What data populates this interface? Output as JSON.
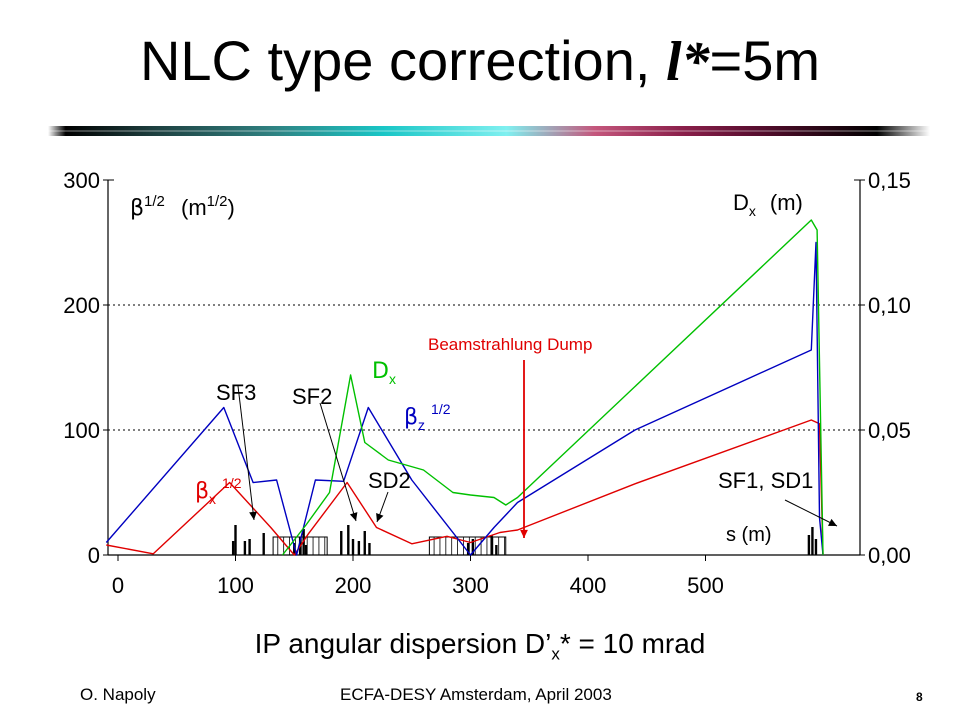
{
  "slide": {
    "title_prefix": "NLC type correction, ",
    "title_symbol": "l*",
    "title_suffix": "=5m",
    "subtitle_main": "IP angular dispersion D’",
    "subtitle_sub": "x",
    "subtitle_end": "* = 10 mrad",
    "footer_left": "O. Napoly",
    "footer_center": "ECFA-DESY Amsterdam, April 2003",
    "page_number": "8"
  },
  "colors": {
    "beta_x": "#e00000",
    "beta_z": "#0000c0",
    "dx": "#00c000",
    "dump": "#e00000",
    "grid": "#000000"
  },
  "chart_data": {
    "type": "line",
    "xlim": [
      -10,
      600
    ],
    "ylim_left": [
      0,
      300
    ],
    "ylim_right": [
      0,
      0.15
    ],
    "x_ticks": [
      0,
      100,
      200,
      300,
      400,
      500
    ],
    "x_tick_labels": [
      "0",
      "100",
      "200",
      "300",
      "400",
      "500"
    ],
    "y_ticks_left": [
      0,
      100,
      200,
      300
    ],
    "y_tick_labels_left": [
      "0",
      "100",
      "200",
      "300"
    ],
    "y_ticks_right": [
      0,
      0.05,
      0.1,
      0.15
    ],
    "y_tick_labels_right": [
      "0,00",
      "0,05",
      "0,10",
      "0,15"
    ],
    "grid": "dotted horizontal at 100 and 200",
    "left_axis_label": {
      "main": "β",
      "sup": "1/2",
      "units": "(m",
      "units_sup": "1/2",
      "close": ")"
    },
    "right_axis_label": {
      "main": "D",
      "sub": "x",
      "units": "(m)"
    },
    "x_axis_label": "s (m)",
    "series": [
      {
        "name": "βx 1/2",
        "axis": "left",
        "x": [
          -10,
          30,
          95,
          130,
          150,
          162,
          195,
          220,
          250,
          280,
          300,
          325,
          340,
          440,
          590,
          597,
          600
        ],
        "y": [
          8,
          1,
          58,
          22,
          0,
          17,
          58,
          22,
          9,
          15,
          10,
          18,
          20,
          57,
          108,
          105,
          0
        ]
      },
      {
        "name": "βz 1/2",
        "axis": "left",
        "x": [
          -10,
          90,
          115,
          135,
          152,
          168,
          192,
          213,
          250,
          300,
          320,
          340,
          440,
          590,
          594,
          597,
          600
        ],
        "y": [
          10,
          118,
          58,
          60,
          0,
          60,
          59,
          118,
          60,
          0,
          22,
          42,
          100,
          164,
          250,
          30,
          0
        ]
      },
      {
        "name": "Dx",
        "axis": "right",
        "x": [
          140,
          160,
          180,
          198,
          210,
          230,
          260,
          285,
          300,
          320,
          330,
          340,
          590,
          595,
          600
        ],
        "y": [
          0.0,
          0.012,
          0.025,
          0.072,
          0.045,
          0.038,
          0.034,
          0.025,
          0.024,
          0.023,
          0.02,
          0.023,
          0.134,
          0.13,
          0.0
        ]
      }
    ],
    "magnet_lattice": {
      "bends": [
        {
          "x1": 132,
          "x2": 178
        },
        {
          "x1": 265,
          "x2": 330
        }
      ],
      "marks": [
        {
          "x": 98,
          "h": 14
        },
        {
          "x": 100,
          "h": 30
        },
        {
          "x": 108,
          "h": 14
        },
        {
          "x": 112,
          "h": 16
        },
        {
          "x": 124,
          "h": 22
        },
        {
          "x": 150,
          "h": 12
        },
        {
          "x": 155,
          "h": 18
        },
        {
          "x": 158,
          "h": 26
        },
        {
          "x": 160,
          "h": 10
        },
        {
          "x": 190,
          "h": 24
        },
        {
          "x": 196,
          "h": 30
        },
        {
          "x": 200,
          "h": 16
        },
        {
          "x": 205,
          "h": 14
        },
        {
          "x": 210,
          "h": 24
        },
        {
          "x": 214,
          "h": 12
        },
        {
          "x": 298,
          "h": 12
        },
        {
          "x": 302,
          "h": 16
        },
        {
          "x": 318,
          "h": 20
        },
        {
          "x": 322,
          "h": 10
        },
        {
          "x": 588,
          "h": 20
        },
        {
          "x": 591,
          "h": 28
        },
        {
          "x": 594,
          "h": 16
        }
      ]
    },
    "annotations": [
      {
        "text": "SF3",
        "color": "#000000",
        "arrows": [
          [
            238,
            386,
            254,
            520
          ]
        ]
      },
      {
        "text": "SF2",
        "color": "#000000",
        "arrows": [
          [
            320,
            403,
            356,
            521
          ]
        ]
      },
      {
        "text": "SD2",
        "color": "#000000",
        "arrows": [
          [
            388,
            492,
            377,
            522
          ]
        ]
      },
      {
        "text": "SF1, SD1",
        "color": "#000000",
        "arrows": [
          [
            785,
            500,
            837,
            526
          ]
        ]
      },
      {
        "text": "Beamstrahlung Dump",
        "color": "#e00000",
        "arrows": [
          [
            524,
            360,
            524,
            538
          ]
        ]
      }
    ],
    "series_labels": [
      {
        "text": "D",
        "sub": "x",
        "color": "#00c000"
      },
      {
        "text": "β",
        "sub": "z",
        "sup": "1/2",
        "color": "#0000c0"
      },
      {
        "text": "β",
        "sub": "x",
        "sup": "1/2",
        "color": "#e00000"
      }
    ]
  }
}
